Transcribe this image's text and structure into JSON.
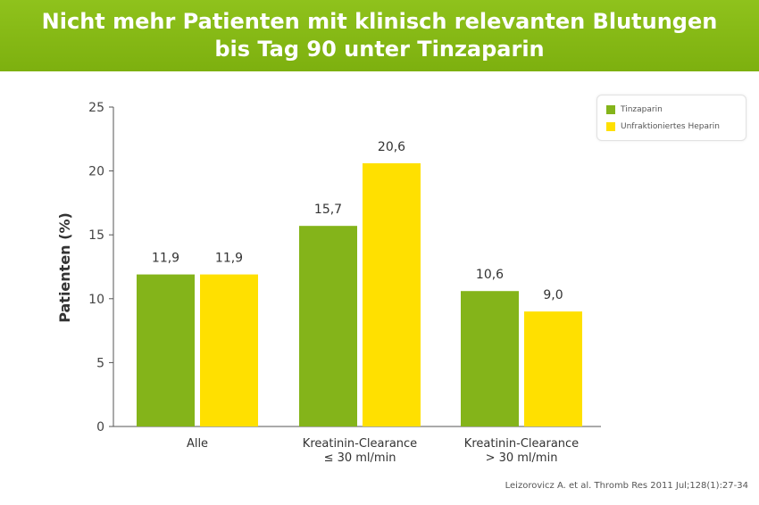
{
  "header": {
    "title_line1": "Nicht mehr Patienten mit klinisch relevanten Blutungen",
    "title_line2": "bis Tag 90 unter Tinzaparin"
  },
  "colors": {
    "header_green": "#82b614",
    "series_green": "#84b41a",
    "series_yellow": "#ffe000"
  },
  "chart_data": {
    "type": "bar",
    "categories": [
      "Alle",
      "Kreatinin-Clearance\n≤ 30 ml/min",
      "Kreatinin-Clearance\n> 30 ml/min"
    ],
    "series": [
      {
        "name": "Tinzaparin",
        "values": [
          11.9,
          15.7,
          10.6
        ],
        "labels": [
          "11,9",
          "15,7",
          "10,6"
        ],
        "color": "#84b41a"
      },
      {
        "name": "Unfraktioniertes Heparin",
        "values": [
          11.9,
          20.6,
          9.0
        ],
        "labels": [
          "11,9",
          "20,6",
          "9,0"
        ],
        "color": "#ffe000"
      }
    ],
    "ylabel": "Patienten (%)",
    "xlabel": "",
    "ylim": [
      0,
      25
    ],
    "yticks": [
      0,
      5,
      10,
      15,
      20,
      25
    ],
    "legend_position": "top-right",
    "grid": false
  },
  "source": "Leizorovicz A. et al. Thromb Res 2011 Jul;128(1):27-34"
}
